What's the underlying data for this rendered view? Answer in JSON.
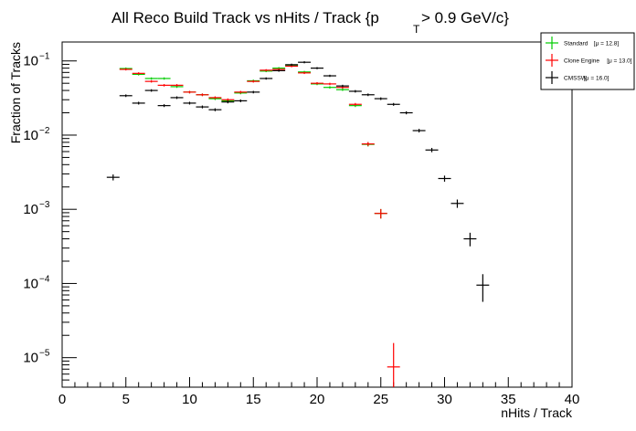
{
  "chart_data": {
    "type": "scatter",
    "title_main": "All Reco Build Track vs nHits / Track {p",
    "title_sub": "T",
    "title_tail": " > 0.9 GeV/c}",
    "xlabel": "nHits / Track",
    "ylabel": "Fraction of Tracks",
    "xlim": [
      0,
      40
    ],
    "ylim": [
      4e-06,
      0.18
    ],
    "y_scale": "log",
    "x_ticks": [
      "0",
      "5",
      "10",
      "15",
      "20",
      "25",
      "30",
      "35",
      "40"
    ],
    "y_ticks": [
      {
        "base": "10",
        "exp": "−1"
      },
      {
        "base": "10",
        "exp": "−2"
      },
      {
        "base": "10",
        "exp": "−3"
      },
      {
        "base": "10",
        "exp": "−4"
      },
      {
        "base": "10",
        "exp": "−5"
      }
    ],
    "legend_placement": "top-right",
    "series": [
      {
        "name": "Standard",
        "mu_label": "[μ = 12.8]",
        "color": "#00cc00",
        "x": [
          5,
          6,
          7,
          8,
          9,
          10,
          11,
          12,
          13,
          14,
          15,
          16,
          17,
          18,
          19,
          20,
          21,
          22,
          23,
          24,
          25
        ],
        "y": [
          0.079,
          0.066,
          0.058,
          0.058,
          0.045,
          0.038,
          0.035,
          0.031,
          0.029,
          0.037,
          0.054,
          0.073,
          0.08,
          0.087,
          0.071,
          0.049,
          0.044,
          0.041,
          0.025,
          0.0075,
          0.00088
        ]
      },
      {
        "name": "Clone Engine",
        "mu_label": "[μ = 13.0]",
        "color": "#ff0000",
        "x": [
          5,
          6,
          7,
          8,
          9,
          10,
          11,
          12,
          13,
          14,
          15,
          16,
          17,
          18,
          19,
          20,
          21,
          22,
          23,
          24,
          25,
          26
        ],
        "y": [
          0.077,
          0.068,
          0.053,
          0.047,
          0.047,
          0.038,
          0.035,
          0.032,
          0.03,
          0.038,
          0.053,
          0.075,
          0.077,
          0.085,
          0.069,
          0.05,
          0.049,
          0.044,
          0.026,
          0.0076,
          0.00088,
          7.5e-06
        ]
      },
      {
        "name": "CMSSW",
        "mu_label": "[μ = 16.0]",
        "color": "#000000",
        "x": [
          4,
          5,
          6,
          7,
          8,
          9,
          10,
          11,
          12,
          13,
          14,
          15,
          16,
          17,
          18,
          19,
          20,
          21,
          22,
          23,
          24,
          25,
          26,
          27,
          28,
          29,
          30,
          31,
          32,
          33
        ],
        "y": [
          0.0027,
          0.034,
          0.027,
          0.04,
          0.025,
          0.032,
          0.027,
          0.024,
          0.022,
          0.028,
          0.029,
          0.038,
          0.058,
          0.074,
          0.089,
          0.096,
          0.08,
          0.063,
          0.046,
          0.039,
          0.035,
          0.031,
          0.026,
          0.02,
          0.0115,
          0.0063,
          0.0026,
          0.0012,
          0.0004,
          9.5e-05
        ]
      }
    ]
  }
}
